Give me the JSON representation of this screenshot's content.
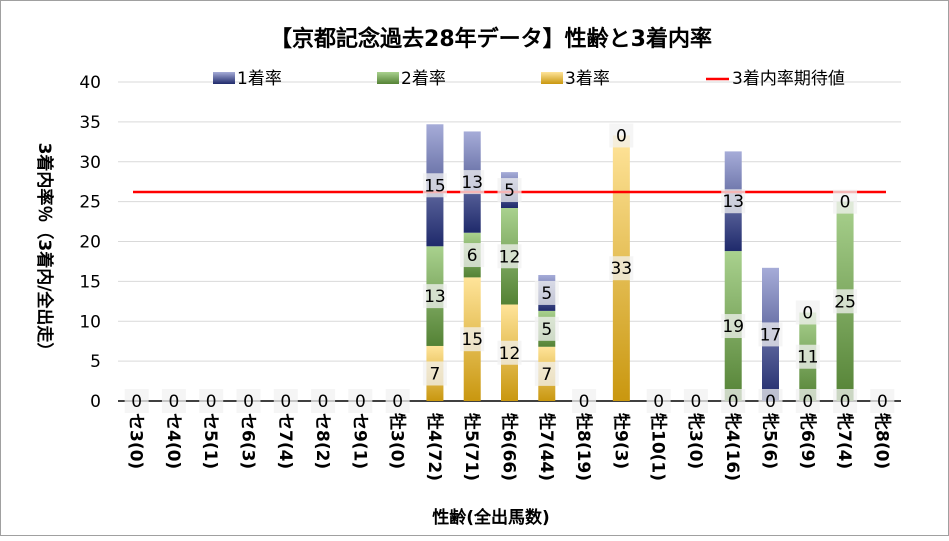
{
  "chart_data": {
    "type": "bar",
    "stacked": true,
    "title": "【京都記念過去28年データ】性齢と3着内率",
    "xlabel": "性齢(全出馬数)",
    "ylabel": "3着内率％（3着内/全出走）",
    "ylim": [
      0,
      40
    ],
    "yticks": [
      0,
      5,
      10,
      15,
      20,
      25,
      30,
      35,
      40
    ],
    "grid": true,
    "legend_position": "top",
    "categories": [
      "セ3(0)",
      "セ4(0)",
      "セ5(1)",
      "セ6(3)",
      "セ7(4)",
      "セ8(2)",
      "セ9(1)",
      "牡3(0)",
      "牡4(72)",
      "牡5(71)",
      "牡6(66)",
      "牡7(44)",
      "牡8(19)",
      "牡9(3)",
      "牡10(1)",
      "牝3(0)",
      "牝4(16)",
      "牝5(6)",
      "牝6(9)",
      "牝7(4)",
      "牝8(0)"
    ],
    "series": [
      {
        "name": "3着率",
        "color": "#c9970f",
        "light": "#ffe49a",
        "values": [
          0,
          0,
          0,
          0,
          0,
          0,
          0,
          0,
          6.9,
          15.5,
          12.1,
          6.8,
          0,
          33.3,
          0,
          0,
          0,
          0,
          0,
          0,
          0
        ],
        "labels": [
          "0",
          "0",
          "0",
          "0",
          "0",
          "0",
          "0",
          "0",
          "7",
          "15",
          "12",
          "7",
          "0",
          "33",
          "0",
          "0",
          "0",
          "0",
          "0",
          "0",
          "0"
        ]
      },
      {
        "name": "2着率",
        "color": "#548235",
        "light": "#a9d18e",
        "values": [
          0,
          0,
          0,
          0,
          0,
          0,
          0,
          0,
          12.5,
          5.6,
          12.1,
          4.5,
          0,
          0,
          0,
          0,
          18.8,
          0,
          11.1,
          25,
          0
        ],
        "labels": [
          null,
          null,
          null,
          null,
          null,
          null,
          null,
          null,
          "13",
          "6",
          "12",
          "5",
          null,
          null,
          null,
          null,
          "19",
          null,
          "11",
          "25",
          null
        ]
      },
      {
        "name": "1着率",
        "color": "#1f2a6b",
        "light": "#a6acd8",
        "values": [
          0,
          0,
          0,
          0,
          0,
          0,
          0,
          0,
          15.3,
          12.7,
          4.5,
          4.5,
          0,
          0,
          0,
          0,
          12.5,
          16.7,
          0,
          0,
          0
        ],
        "labels": [
          null,
          null,
          null,
          null,
          null,
          null,
          null,
          null,
          "15",
          "13",
          "5",
          "5",
          null,
          "0",
          null,
          null,
          "13",
          "17",
          "0",
          "0",
          null
        ]
      }
    ],
    "reference_line": {
      "name": "3着内率期待値",
      "value": 26.2,
      "color": "#ff0000"
    },
    "legend": [
      "1着率",
      "2着率",
      "3着率",
      "3着内率期待値"
    ]
  }
}
